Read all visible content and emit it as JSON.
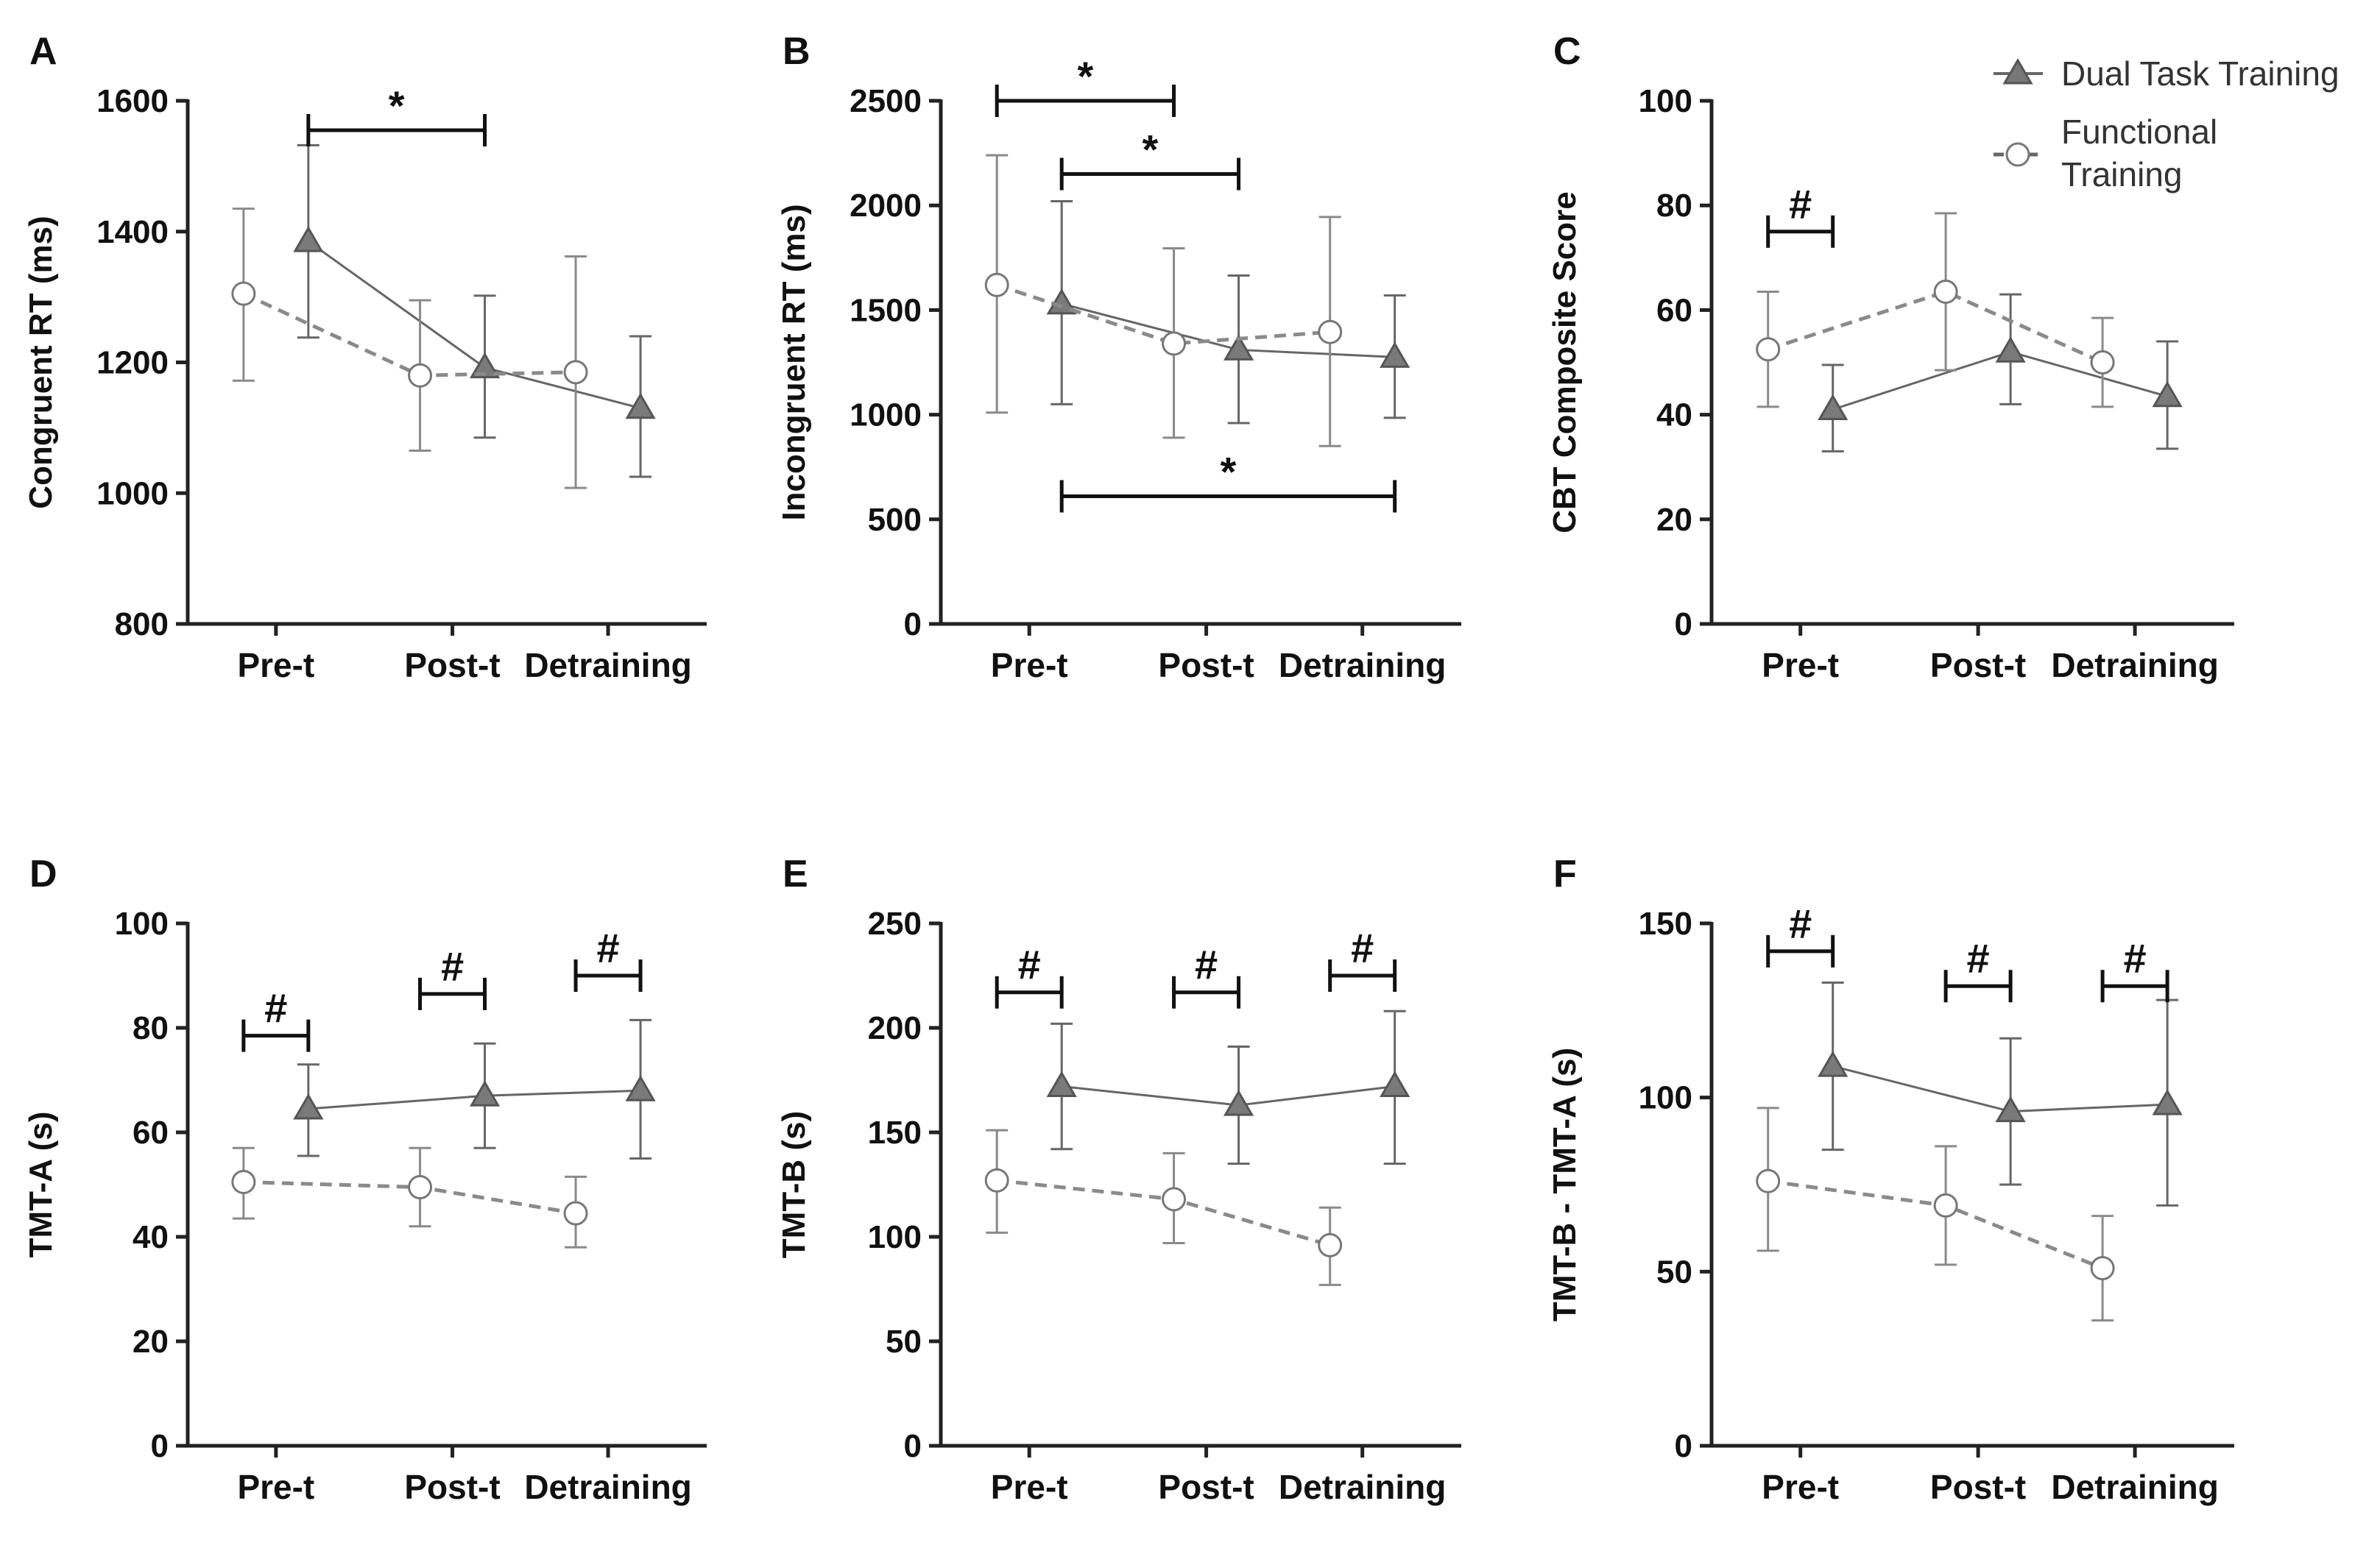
{
  "legend": {
    "dual": {
      "label": "Dual Task Training",
      "color": "#666666"
    },
    "functional": {
      "label": "Functional Training",
      "label_lines": [
        "Functional",
        "Training"
      ],
      "color": "#7a7a7a"
    }
  },
  "chart_data": [
    {
      "panel": "A",
      "type": "line",
      "ylabel": "Congruent RT (ms)",
      "ylim": [
        800,
        1600
      ],
      "yticks": [
        800,
        1000,
        1200,
        1400,
        1600
      ],
      "categories": [
        "Pre-t",
        "Post-t",
        "Detraining"
      ],
      "series": [
        {
          "name": "Dual Task Training",
          "values": [
            1385,
            1192,
            1130
          ],
          "err_low": [
            1238,
            1085,
            1025
          ],
          "err_high": [
            1532,
            1302,
            1240
          ]
        },
        {
          "name": "Functional Training",
          "values": [
            1305,
            1180,
            1185
          ],
          "err_low": [
            1172,
            1065,
            1008
          ],
          "err_high": [
            1435,
            1295,
            1362
          ]
        }
      ],
      "significance": [
        {
          "mark": "*",
          "from": [
            0,
            "dual"
          ],
          "to": [
            1,
            "dual"
          ],
          "level": 1555
        }
      ]
    },
    {
      "panel": "B",
      "type": "line",
      "ylabel": "Incongruent RT (ms)",
      "ylim": [
        0,
        2500
      ],
      "yticks": [
        0,
        500,
        1000,
        1500,
        2000,
        2500
      ],
      "categories": [
        "Pre-t",
        "Post-t",
        "Detraining"
      ],
      "series": [
        {
          "name": "Dual Task Training",
          "values": [
            1530,
            1310,
            1275
          ],
          "err_low": [
            1050,
            960,
            985
          ],
          "err_high": [
            2020,
            1665,
            1570
          ]
        },
        {
          "name": "Functional Training",
          "values": [
            1620,
            1340,
            1395
          ],
          "err_low": [
            1010,
            890,
            850
          ],
          "err_high": [
            2240,
            1795,
            1945
          ]
        }
      ],
      "significance": [
        {
          "mark": "*",
          "from": [
            0,
            "functional"
          ],
          "to": [
            1,
            "functional"
          ],
          "level": 2500
        },
        {
          "mark": "*",
          "from": [
            0,
            "dual"
          ],
          "to": [
            1,
            "dual"
          ],
          "level": 2150
        },
        {
          "mark": "*",
          "from": [
            0,
            "dual"
          ],
          "to": [
            2,
            "dual"
          ],
          "level": 610
        }
      ]
    },
    {
      "panel": "C",
      "type": "line",
      "ylabel": "CBT Composite Score",
      "ylim": [
        0,
        100
      ],
      "yticks": [
        0,
        20,
        40,
        60,
        80,
        100
      ],
      "categories": [
        "Pre-t",
        "Post-t",
        "Detraining"
      ],
      "series": [
        {
          "name": "Dual Task Training",
          "values": [
            41,
            52,
            43.5
          ],
          "err_low": [
            33,
            42,
            33.5
          ],
          "err_high": [
            49.5,
            63,
            54
          ]
        },
        {
          "name": "Functional Training",
          "values": [
            52.5,
            63.5,
            50
          ],
          "err_low": [
            41.5,
            48.5,
            41.5
          ],
          "err_high": [
            63.5,
            78.5,
            58.5
          ]
        }
      ],
      "significance": [
        {
          "mark": "#",
          "from": [
            0,
            "functional"
          ],
          "to": [
            0,
            "dual"
          ],
          "level": 75
        }
      ]
    },
    {
      "panel": "D",
      "type": "line",
      "ylabel": "TMT-A (s)",
      "ylim": [
        0,
        100
      ],
      "yticks": [
        0,
        20,
        40,
        60,
        80,
        100
      ],
      "categories": [
        "Pre-t",
        "Post-t",
        "Detraining"
      ],
      "series": [
        {
          "name": "Dual Task Training",
          "values": [
            64.5,
            67,
            68
          ],
          "err_low": [
            55.5,
            57,
            55
          ],
          "err_high": [
            73,
            77,
            81.5
          ]
        },
        {
          "name": "Functional Training",
          "values": [
            50.5,
            49.5,
            44.5
          ],
          "err_low": [
            43.5,
            42,
            38
          ],
          "err_high": [
            57,
            57,
            51.5
          ]
        }
      ],
      "significance": [
        {
          "mark": "#",
          "from": [
            0,
            "functional"
          ],
          "to": [
            0,
            "dual"
          ],
          "level": 78.5
        },
        {
          "mark": "#",
          "from": [
            1,
            "functional"
          ],
          "to": [
            1,
            "dual"
          ],
          "level": 86.5
        },
        {
          "mark": "#",
          "from": [
            2,
            "functional"
          ],
          "to": [
            2,
            "dual"
          ],
          "level": 90
        }
      ]
    },
    {
      "panel": "E",
      "type": "line",
      "ylabel": "TMT-B (s)",
      "ylim": [
        0,
        250
      ],
      "yticks": [
        0,
        50,
        100,
        150,
        200,
        250
      ],
      "categories": [
        "Pre-t",
        "Post-t",
        "Detraining"
      ],
      "series": [
        {
          "name": "Dual Task Training",
          "values": [
            172,
            163,
            172
          ],
          "err_low": [
            142,
            135,
            135
          ],
          "err_high": [
            202,
            191,
            208
          ]
        },
        {
          "name": "Functional Training",
          "values": [
            127,
            118,
            96
          ],
          "err_low": [
            102,
            97,
            77
          ],
          "err_high": [
            151,
            140,
            114
          ]
        }
      ],
      "significance": [
        {
          "mark": "#",
          "from": [
            0,
            "functional"
          ],
          "to": [
            0,
            "dual"
          ],
          "level": 217
        },
        {
          "mark": "#",
          "from": [
            1,
            "functional"
          ],
          "to": [
            1,
            "dual"
          ],
          "level": 217
        },
        {
          "mark": "#",
          "from": [
            2,
            "functional"
          ],
          "to": [
            2,
            "dual"
          ],
          "level": 225
        }
      ]
    },
    {
      "panel": "F",
      "type": "line",
      "ylabel": "TMT-B - TMT-A (s)",
      "ylim": [
        0,
        150
      ],
      "yticks": [
        0,
        50,
        100,
        150
      ],
      "categories": [
        "Pre-t",
        "Post-t",
        "Detraining"
      ],
      "series": [
        {
          "name": "Dual Task Training",
          "values": [
            109,
            96,
            98
          ],
          "err_low": [
            85,
            75,
            69
          ],
          "err_high": [
            133,
            117,
            128
          ]
        },
        {
          "name": "Functional Training",
          "values": [
            76,
            69,
            51
          ],
          "err_low": [
            56,
            52,
            36
          ],
          "err_high": [
            97,
            86,
            66
          ]
        }
      ],
      "significance": [
        {
          "mark": "#",
          "from": [
            0,
            "functional"
          ],
          "to": [
            0,
            "dual"
          ],
          "level": 142
        },
        {
          "mark": "#",
          "from": [
            1,
            "functional"
          ],
          "to": [
            1,
            "dual"
          ],
          "level": 132
        },
        {
          "mark": "#",
          "from": [
            2,
            "functional"
          ],
          "to": [
            2,
            "dual"
          ],
          "level": 132
        }
      ]
    }
  ]
}
